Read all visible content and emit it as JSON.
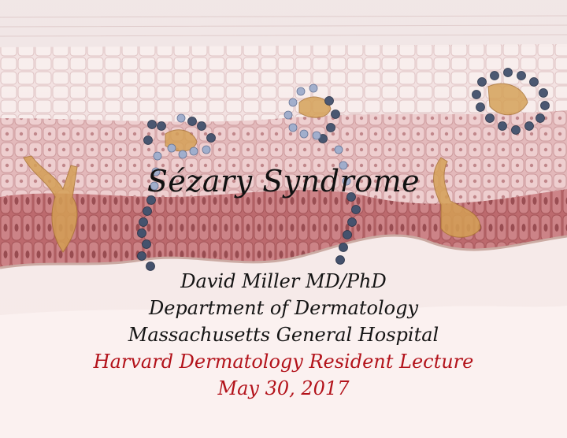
{
  "slide": {
    "title": "Sézary Syndrome",
    "presenter": "David Miller MD/PhD",
    "department": "Department of Dermatology",
    "hospital": "Massachusetts General Hospital",
    "event": "Harvard Dermatology Resident Lecture",
    "date": "May 30, 2017"
  },
  "colors": {
    "title_text": "#111111",
    "body_text": "#141414",
    "accent_red": "#b3131b",
    "cell_blue_dark": "#3c4a66",
    "cell_blue_light": "#8a9ac0",
    "epidermis_pink": "#e9c8c9",
    "basal_red": "#b9575c",
    "dendritic_orange": "#c98a3c"
  },
  "background": {
    "illustration": "skin-epidermis-cross-section"
  }
}
